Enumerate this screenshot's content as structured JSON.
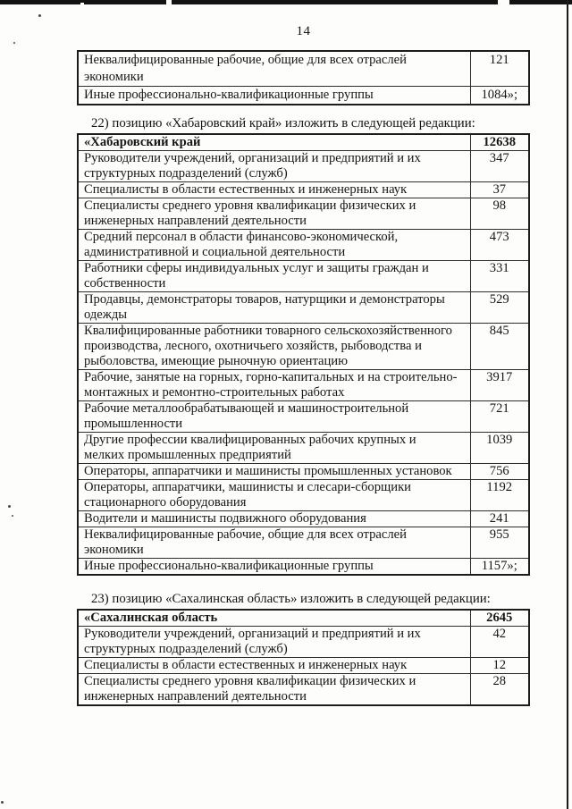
{
  "page": {
    "number": "14"
  },
  "colors": {
    "ink": "#141414",
    "paper": "#fdfdfc"
  },
  "continuation_table": {
    "rows": [
      {
        "label": "Неквалифицированные рабочие, общие для всех отраслей экономики",
        "value": "121"
      },
      {
        "label": "Иные профессионально-квалификационные группы",
        "value": "1084»;"
      }
    ]
  },
  "khabarovsk": {
    "intro": "22) позицию «Хабаровский край» изложить в следующей редакции:",
    "header": {
      "label": "«Хабаровский край",
      "value": "12638"
    },
    "rows": [
      {
        "label": "Руководители учреждений, организаций и предприятий и их структурных подразделений (служб)",
        "value": "347"
      },
      {
        "label": "Специалисты в области естественных и инженерных наук",
        "value": "37"
      },
      {
        "label": "Специалисты среднего уровня квалификации физических и инженерных направлений деятельности",
        "value": "98"
      },
      {
        "label": "Средний персонал в области финансово-экономической, административной и социальной деятельности",
        "value": "473"
      },
      {
        "label": "Работники сферы индивидуальных услуг и защиты граждан и собственности",
        "value": "331"
      },
      {
        "label": "Продавцы, демонстраторы товаров, натурщики и демонстраторы одежды",
        "value": "529"
      },
      {
        "label": "Квалифицированные работники товарного сельскохозяйственного производства, лесного, охотничьего хозяйств, рыбоводства и рыболовства, имеющие рыночную ориентацию",
        "value": "845"
      },
      {
        "label": "Рабочие, занятые на горных, горно-капитальных и на строительно-монтажных и ремонтно-строительных работах",
        "value": "3917"
      },
      {
        "label": "Рабочие металлообрабатывающей и машиностроительной промышленности",
        "value": "721"
      },
      {
        "label": "Другие профессии квалифицированных рабочих крупных и мелких промышленных предприятий",
        "value": "1039"
      },
      {
        "label": "Операторы, аппаратчики и машинисты промышленных установок",
        "value": "756"
      },
      {
        "label": "Операторы, аппаратчики, машинисты и слесари-сборщики стационарного оборудования",
        "value": "1192"
      },
      {
        "label": "Водители и машинисты подвижного оборудования",
        "value": "241"
      },
      {
        "label": "Неквалифицированные рабочие, общие для всех отраслей экономики",
        "value": "955"
      },
      {
        "label": "Иные профессионально-квалификационные группы",
        "value": "1157»;"
      }
    ]
  },
  "sakhalin": {
    "intro": "23) позицию «Сахалинская область» изложить в следующей редакции:",
    "header": {
      "label": "«Сахалинская область",
      "value": "2645"
    },
    "rows": [
      {
        "label": "Руководители учреждений, организаций и предприятий и их структурных подразделений (служб)",
        "value": "42"
      },
      {
        "label": "Специалисты в области естественных и инженерных наук",
        "value": "12"
      },
      {
        "label": "Специалисты среднего уровня квалификации физических и инженерных направлений деятельности",
        "value": "28"
      }
    ]
  }
}
